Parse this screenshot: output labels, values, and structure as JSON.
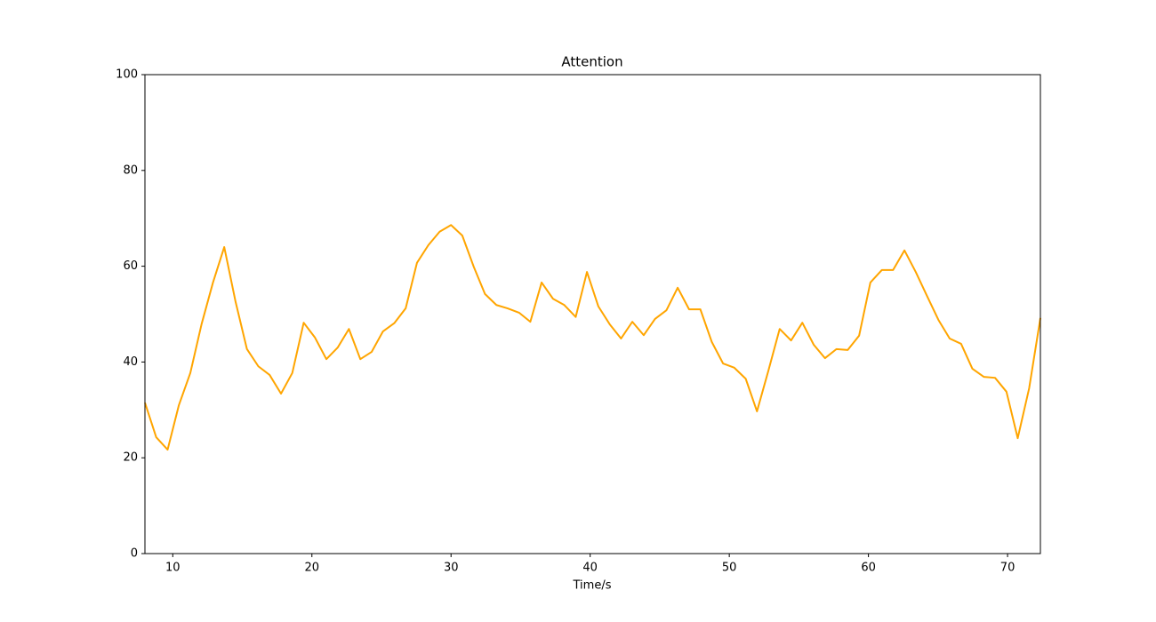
{
  "chart_data": {
    "type": "line",
    "title": "Attention",
    "x_label": "Time/s",
    "x": [
      8.0,
      8.81,
      9.63,
      10.44,
      11.26,
      12.07,
      12.89,
      13.7,
      14.52,
      15.33,
      16.15,
      16.96,
      17.78,
      18.59,
      19.41,
      20.22,
      21.04,
      21.85,
      22.66,
      23.48,
      24.29,
      25.11,
      25.92,
      26.74,
      27.55,
      28.37,
      29.18,
      30.0,
      30.81,
      31.63,
      32.44,
      33.26,
      34.07,
      34.89,
      35.7,
      36.51,
      37.33,
      38.14,
      38.96,
      39.77,
      40.59,
      41.4,
      42.22,
      43.03,
      43.85,
      44.66,
      45.48,
      46.29,
      47.11,
      47.92,
      48.74,
      49.55,
      50.36,
      51.18,
      51.99,
      52.81,
      53.62,
      54.44,
      55.25,
      56.07,
      56.88,
      57.7,
      58.51,
      59.33,
      60.14,
      60.96,
      61.77,
      62.59,
      63.4,
      64.21,
      65.03,
      65.84,
      66.66,
      67.47,
      68.29,
      69.1,
      69.92,
      70.73,
      71.55,
      72.36
    ],
    "series": [
      {
        "color": "#ffa500",
        "values": [
          31.5,
          24.3,
          21.7,
          31,
          37.7,
          47.9,
          56.6,
          64,
          52.5,
          42.7,
          39.1,
          37.3,
          33.4,
          37.7,
          48.2,
          45.1,
          40.6,
          43,
          46.9,
          40.6,
          42.1,
          46.4,
          48.1,
          51.2,
          60.7,
          64.4,
          67.2,
          68.6,
          66.4,
          59.9,
          54.2,
          51.9,
          51.2,
          50.3,
          48.4,
          56.6,
          53.2,
          51.9,
          49.4,
          58.8,
          51.6,
          47.9,
          44.9,
          48.4,
          45.6,
          49,
          50.8,
          55.5,
          51,
          51,
          44.2,
          39.7,
          38.8,
          36.5,
          29.7,
          38.2,
          46.9,
          44.5,
          48.2,
          43.6,
          40.8,
          42.7,
          42.5,
          45.5,
          56.6,
          59.2,
          59.2,
          63.3,
          58.8,
          53.8,
          48.8,
          44.9,
          43.8,
          38.6,
          36.9,
          36.7,
          33.8,
          24.1,
          34.5,
          49.2
        ]
      }
    ],
    "xlim": [
      8.0,
      72.36
    ],
    "ylim": [
      0,
      100
    ],
    "xticks": [
      10,
      20,
      30,
      40,
      50,
      60,
      70
    ],
    "yticks": [
      0,
      20,
      40,
      60,
      80,
      100
    ],
    "grid": false
  }
}
